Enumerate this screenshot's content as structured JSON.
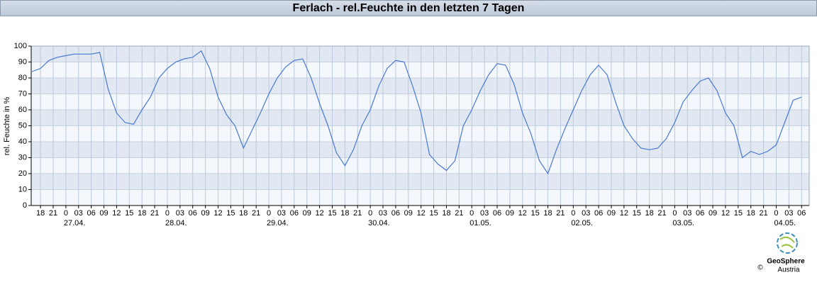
{
  "chart_data": {
    "type": "line",
    "title": "Ferlach - rel.Feuchte in den letzten 7 Tagen",
    "ylabel": "rel. Feuchte in %",
    "color": "#4a78d2",
    "x": [
      16,
      18,
      20,
      22,
      24,
      26,
      28,
      30,
      32,
      34,
      36,
      38,
      40,
      42,
      44,
      46,
      48,
      50,
      52,
      54,
      56,
      58,
      60,
      62,
      64,
      66,
      68,
      70,
      72,
      74,
      76,
      78,
      80,
      82,
      84,
      86,
      88,
      90,
      92,
      94,
      96,
      98,
      100,
      102,
      104,
      106,
      108,
      110,
      112,
      114,
      116,
      118,
      120,
      122,
      124,
      126,
      128,
      130,
      132,
      134,
      136,
      138,
      140,
      142,
      144,
      146,
      148,
      150,
      152,
      154,
      156,
      158,
      160,
      162,
      164,
      166,
      168,
      170,
      172,
      174,
      176,
      178,
      180,
      182,
      184,
      186,
      188,
      190,
      192,
      194,
      196,
      198
    ],
    "values": [
      84,
      86,
      91,
      93,
      94,
      95,
      95,
      95,
      96,
      73,
      58,
      52,
      51,
      60,
      68,
      80,
      86,
      90,
      92,
      93,
      97,
      86,
      68,
      57,
      50,
      36,
      47,
      58,
      70,
      80,
      87,
      91,
      92,
      80,
      64,
      50,
      33,
      25,
      35,
      50,
      60,
      75,
      86,
      91,
      90,
      75,
      58,
      32,
      26,
      22,
      28,
      50,
      60,
      72,
      82,
      89,
      88,
      76,
      58,
      45,
      28,
      20,
      35,
      48,
      60,
      72,
      82,
      88,
      82,
      65,
      50,
      42,
      36,
      35,
      36,
      42,
      52,
      65,
      72,
      78,
      80,
      72,
      58,
      50,
      30,
      34,
      32,
      34,
      38,
      52,
      66,
      68
    ],
    "xlim": [
      15.8,
      199.8
    ],
    "ylim": [
      0,
      100
    ],
    "yticks": [
      0,
      10,
      20,
      30,
      40,
      50,
      60,
      70,
      80,
      90,
      100
    ],
    "xticks": [
      18,
      21,
      {
        "value": 24,
        "label": "0"
      },
      {
        "value": 27,
        "label": "03"
      },
      {
        "value": 30,
        "label": "06"
      },
      {
        "value": 33,
        "label": "09"
      },
      {
        "value": 36,
        "label": "12"
      },
      {
        "value": 39,
        "label": "15"
      },
      {
        "value": 42,
        "label": "18"
      },
      {
        "value": 45,
        "label": "21"
      },
      {
        "value": 48,
        "label": "0"
      },
      {
        "value": 51,
        "label": "03"
      },
      {
        "value": 54,
        "label": "06"
      },
      {
        "value": 57,
        "label": "09"
      },
      {
        "value": 60,
        "label": "12"
      },
      {
        "value": 63,
        "label": "15"
      },
      {
        "value": 66,
        "label": "18"
      },
      {
        "value": 69,
        "label": "21"
      },
      {
        "value": 72,
        "label": "0"
      },
      {
        "value": 75,
        "label": "03"
      },
      {
        "value": 78,
        "label": "06"
      },
      {
        "value": 81,
        "label": "09"
      },
      {
        "value": 84,
        "label": "12"
      },
      {
        "value": 87,
        "label": "15"
      },
      {
        "value": 90,
        "label": "18"
      },
      {
        "value": 93,
        "label": "21"
      },
      {
        "value": 96,
        "label": "0"
      },
      {
        "value": 99,
        "label": "03"
      },
      {
        "value": 102,
        "label": "06"
      },
      {
        "value": 105,
        "label": "09"
      },
      {
        "value": 108,
        "label": "12"
      },
      {
        "value": 111,
        "label": "15"
      },
      {
        "value": 114,
        "label": "18"
      },
      {
        "value": 117,
        "label": "21"
      },
      {
        "value": 120,
        "label": "0"
      },
      {
        "value": 123,
        "label": "03"
      },
      {
        "value": 126,
        "label": "06"
      },
      {
        "value": 129,
        "label": "09"
      },
      {
        "value": 132,
        "label": "12"
      },
      {
        "value": 135,
        "label": "15"
      },
      {
        "value": 138,
        "label": "18"
      },
      {
        "value": 141,
        "label": "21"
      },
      {
        "value": 144,
        "label": "0"
      },
      {
        "value": 147,
        "label": "03"
      },
      {
        "value": 150,
        "label": "06"
      },
      {
        "value": 153,
        "label": "09"
      },
      {
        "value": 156,
        "label": "12"
      },
      {
        "value": 159,
        "label": "15"
      },
      {
        "value": 162,
        "label": "18"
      },
      {
        "value": 165,
        "label": "21"
      },
      {
        "value": 168,
        "label": "0"
      },
      {
        "value": 171,
        "label": "03"
      },
      {
        "value": 174,
        "label": "06"
      },
      {
        "value": 177,
        "label": "09"
      },
      {
        "value": 180,
        "label": "12"
      },
      {
        "value": 183,
        "label": "15"
      },
      {
        "value": 186,
        "label": "18"
      },
      {
        "value": 189,
        "label": "21"
      },
      {
        "value": 192,
        "label": "0"
      },
      {
        "value": 195,
        "label": "03"
      },
      {
        "value": 198,
        "label": "06"
      }
    ],
    "date_ticks": [
      {
        "value": 24,
        "label": "27.04."
      },
      {
        "value": 48,
        "label": "28.04."
      },
      {
        "value": 72,
        "label": "29.04."
      },
      {
        "value": 96,
        "label": "30.04."
      },
      {
        "value": 120,
        "label": "01.05."
      },
      {
        "value": 144,
        "label": "02.05."
      },
      {
        "value": 168,
        "label": "03.05."
      },
      {
        "value": 192,
        "label": "04.05."
      }
    ],
    "grid": true
  },
  "logo": {
    "name": "GeoSphere",
    "sub": "Austria",
    "copyright": "©"
  }
}
